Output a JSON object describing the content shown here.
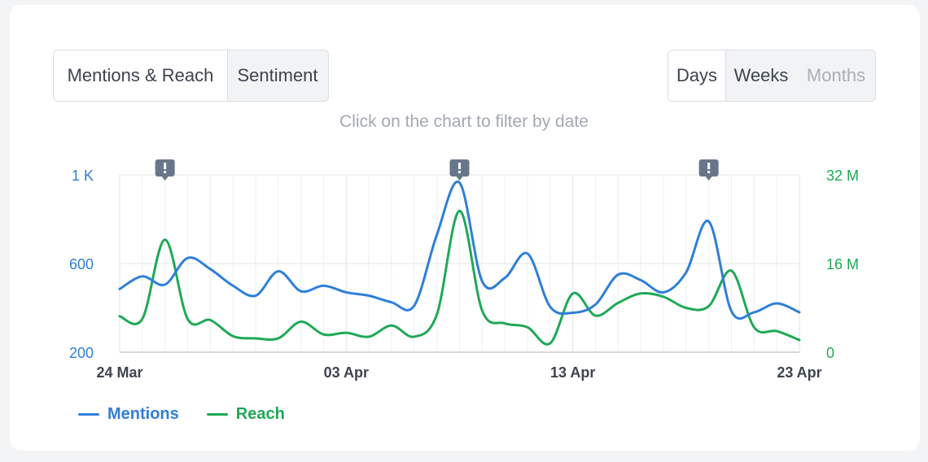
{
  "tabs": {
    "left": [
      "Mentions & Reach",
      "Sentiment"
    ],
    "right": [
      "Days",
      "Weeks",
      "Months"
    ]
  },
  "hint": "Click on the chart to filter by date",
  "chart_data": {
    "type": "line",
    "x": [
      "2021-03-24",
      "2021-03-25",
      "2021-03-26",
      "2021-03-27",
      "2021-03-28",
      "2021-03-29",
      "2021-03-30",
      "2021-03-31",
      "2021-04-01",
      "2021-04-02",
      "2021-04-03",
      "2021-04-04",
      "2021-04-05",
      "2021-04-06",
      "2021-04-07",
      "2021-04-08",
      "2021-04-09",
      "2021-04-10",
      "2021-04-11",
      "2021-04-12",
      "2021-04-13",
      "2021-04-14",
      "2021-04-15",
      "2021-04-16",
      "2021-04-17",
      "2021-04-18",
      "2021-04-19",
      "2021-04-20",
      "2021-04-21",
      "2021-04-22",
      "2021-04-23"
    ],
    "x_tick_labels": [
      "24 Mar",
      "03 Apr",
      "13 Apr",
      "23 Apr"
    ],
    "y_left": {
      "ticks": [
        "1 K",
        "600",
        "200"
      ],
      "range": [
        200,
        1000
      ],
      "color": "#2f7fd8"
    },
    "y_right": {
      "ticks": [
        "32 M",
        "16 M",
        "0"
      ],
      "range": [
        0,
        32
      ],
      "unit": "M",
      "color": "#1ea956"
    },
    "series": [
      {
        "name": "Mentions",
        "axis": "left",
        "color": "#2f7fd8",
        "values": [
          485,
          542,
          505,
          625,
          575,
          500,
          455,
          565,
          475,
          500,
          470,
          455,
          425,
          410,
          730,
          965,
          520,
          535,
          645,
          405,
          378,
          415,
          550,
          525,
          470,
          560,
          790,
          385,
          380,
          420,
          380
        ]
      },
      {
        "name": "Reach",
        "axis": "right",
        "color": "#1ea956",
        "values": [
          6.5,
          6.0,
          20.3,
          6.0,
          5.8,
          2.9,
          2.5,
          2.5,
          5.5,
          3.2,
          3.5,
          2.8,
          4.8,
          2.8,
          6.8,
          25.5,
          7.5,
          5.2,
          4.5,
          1.6,
          10.6,
          6.6,
          8.9,
          10.6,
          10.0,
          8.0,
          8.3,
          14.7,
          4.5,
          3.8,
          2.2
        ]
      }
    ],
    "annotations": [
      "2021-03-26",
      "2021-04-08",
      "2021-04-19"
    ],
    "legend": {
      "position": "bottom-left",
      "items": [
        "Mentions",
        "Reach"
      ]
    },
    "grid": true
  }
}
